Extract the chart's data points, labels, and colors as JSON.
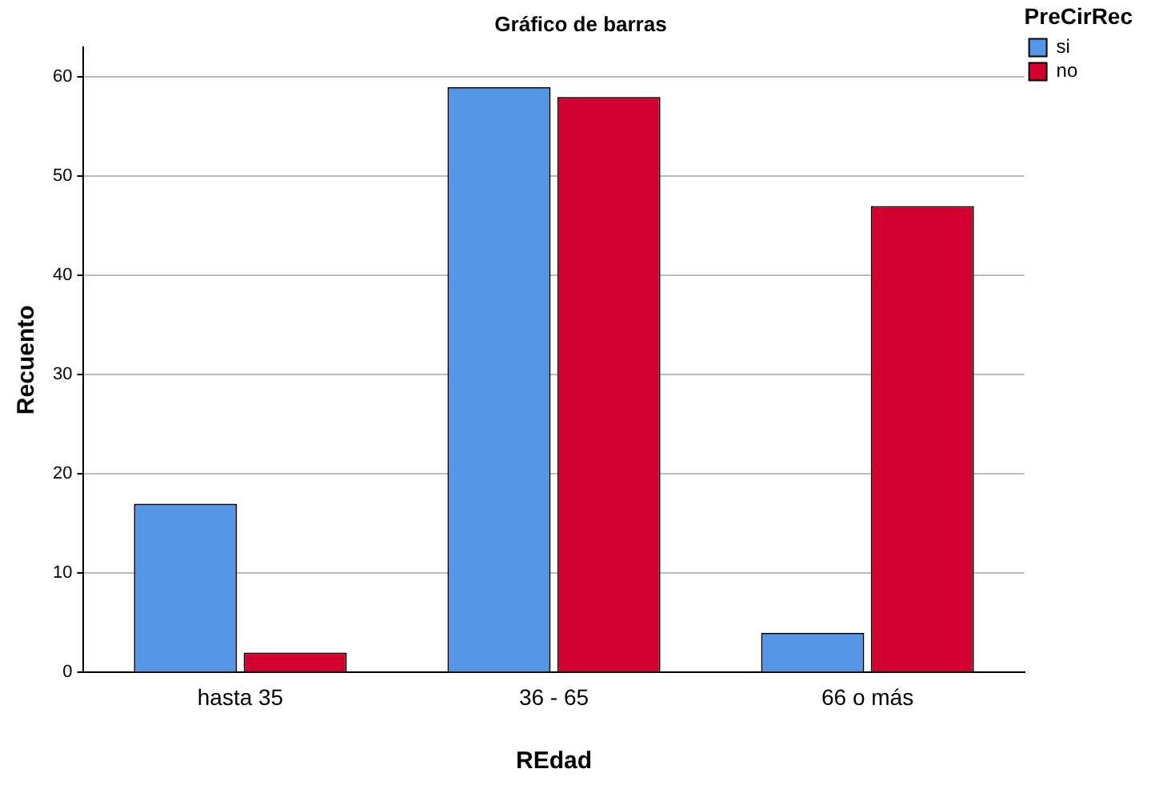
{
  "chart_data": {
    "type": "bar",
    "title": "Gráfico de barras",
    "xlabel": "REdad",
    "ylabel": "Recuento",
    "legend_title": "PreCirRec",
    "categories": [
      "hasta 35",
      "36 - 65",
      "66 o más"
    ],
    "series": [
      {
        "name": "si",
        "color": "#5596e6",
        "values": [
          17,
          59,
          4
        ]
      },
      {
        "name": "no",
        "color": "#d3002f",
        "values": [
          2,
          58,
          47
        ]
      }
    ],
    "ylim": [
      0,
      63
    ],
    "yticks": [
      0,
      10,
      20,
      30,
      40,
      50,
      60
    ],
    "grid": "y",
    "legend": "top right"
  }
}
